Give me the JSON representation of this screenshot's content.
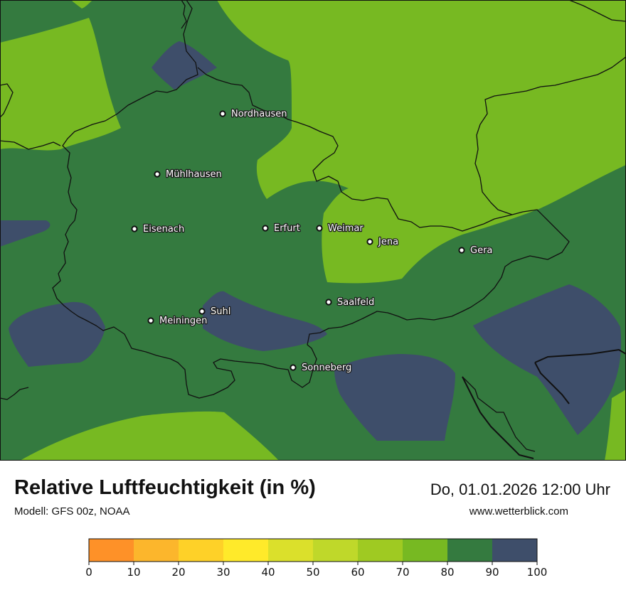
{
  "header": {
    "title": "Relative Luftfeuchtigkeit (in %)",
    "model": "Modell: GFS 00z, NOAA",
    "datetime": "Do, 01.01.2026 12:00 Uhr",
    "website": "www.wetterblick.com"
  },
  "colors": {
    "land_base": "#347a3f",
    "band_70_80": "#77b922",
    "band_90_100": "#3e4e6a",
    "border": "#111111"
  },
  "cities": [
    {
      "name": "Nordhausen"
    },
    {
      "name": "Mühlhausen"
    },
    {
      "name": "Eisenach"
    },
    {
      "name": "Erfurt"
    },
    {
      "name": "Weimar"
    },
    {
      "name": "Jena"
    },
    {
      "name": "Gera"
    },
    {
      "name": "Suhl"
    },
    {
      "name": "Meiningen"
    },
    {
      "name": "Saalfeld"
    },
    {
      "name": "Sonneberg"
    }
  ],
  "legend": {
    "ticks": [
      "0",
      "10",
      "20",
      "30",
      "40",
      "50",
      "60",
      "70",
      "80",
      "90",
      "100"
    ],
    "bins": [
      {
        "range": "0-10",
        "color": "#fe9128"
      },
      {
        "range": "10-20",
        "color": "#fcb62c"
      },
      {
        "range": "20-30",
        "color": "#fed128"
      },
      {
        "range": "30-40",
        "color": "#ffea2a"
      },
      {
        "range": "40-50",
        "color": "#dbe02b"
      },
      {
        "range": "50-60",
        "color": "#bfd82a"
      },
      {
        "range": "60-70",
        "color": "#9fca22"
      },
      {
        "range": "70-80",
        "color": "#77b922"
      },
      {
        "range": "80-90",
        "color": "#347a3f"
      },
      {
        "range": "90-100",
        "color": "#3e4e6a"
      }
    ]
  }
}
